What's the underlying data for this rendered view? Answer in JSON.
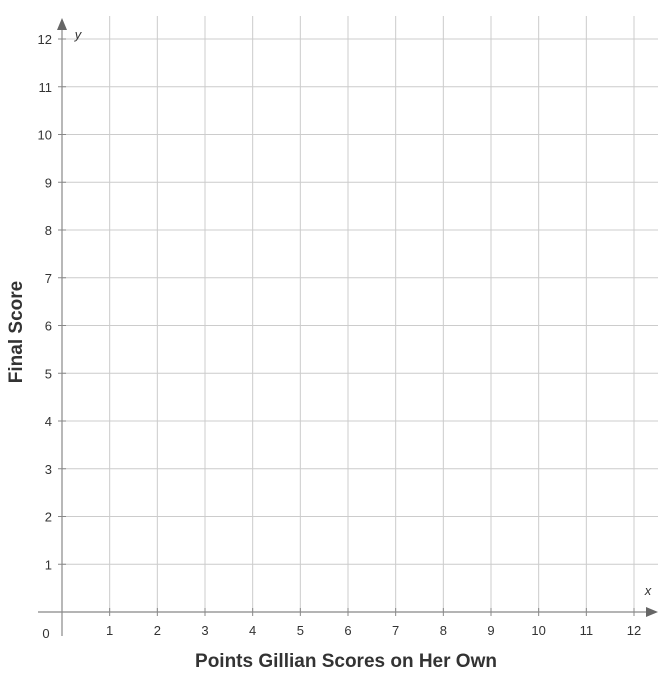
{
  "chart_data": {
    "type": "scatter",
    "title": "",
    "xlabel": "Points Gillian Scores on Her Own",
    "ylabel": "Final Score",
    "x_var": "x",
    "y_var": "y",
    "origin_label": "0",
    "xlim": [
      0,
      12
    ],
    "ylim": [
      0,
      12
    ],
    "x_ticks": [
      1,
      2,
      3,
      4,
      5,
      6,
      7,
      8,
      9,
      10,
      11,
      12
    ],
    "y_ticks": [
      1,
      2,
      3,
      4,
      5,
      6,
      7,
      8,
      9,
      10,
      11,
      12
    ],
    "grid": true,
    "series": []
  }
}
